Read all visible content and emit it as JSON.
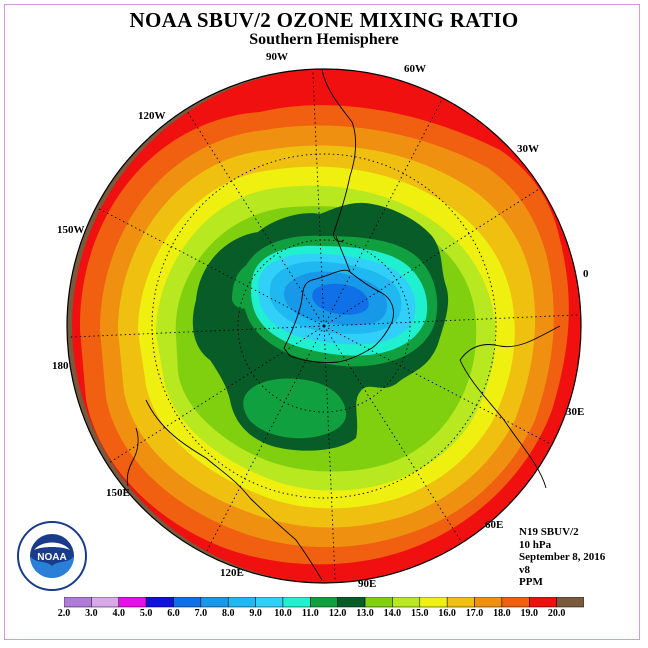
{
  "title": "NOAA SBUV/2 OZONE MIXING RATIO",
  "subtitle": "Southern Hemisphere",
  "longitude_labels": [
    "90W",
    "60W",
    "30W",
    "120W",
    "0",
    "150W",
    "180",
    "30E",
    "150E",
    "60E",
    "120E",
    "90E"
  ],
  "info": {
    "instrument": "N19 SBUV/2",
    "level": "10 hPa",
    "date": "September 8, 2016",
    "version": "v8",
    "units": "PPM"
  },
  "logo_text": "NOAA",
  "colorbar": {
    "ticks": [
      "2.0",
      "3.0",
      "4.0",
      "5.0",
      "6.0",
      "7.0",
      "8.0",
      "9.0",
      "10.0",
      "11.0",
      "12.0",
      "13.0",
      "14.0",
      "15.0",
      "16.0",
      "17.0",
      "18.0",
      "19.0",
      "20.0"
    ],
    "colors": [
      "#b07ad8",
      "#d8a8e8",
      "#e810e8",
      "#1010e0",
      "#1070e8",
      "#1898e8",
      "#20b8f0",
      "#30d0f8",
      "#20f0d0",
      "#10a040",
      "#085c28",
      "#80d010",
      "#b8e820",
      "#f0f010",
      "#f0c010",
      "#f09010",
      "#f06010",
      "#f01010",
      "#7a5a3c"
    ]
  },
  "map": {
    "zero_lon_direction": "east",
    "latitude_circles": [
      -30,
      -60
    ],
    "lon_spacing_deg": 30
  }
}
